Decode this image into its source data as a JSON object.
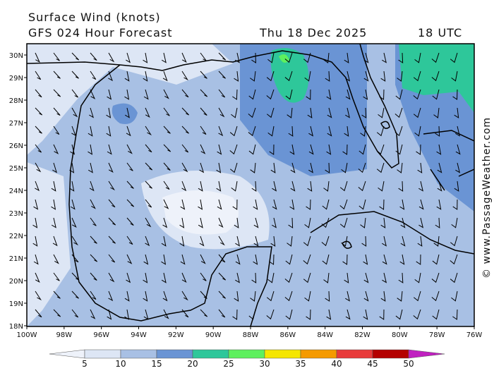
{
  "header": {
    "title": "Surface Wind (knots)",
    "subtitle": "GFS 024 Hour Forecast",
    "date": "Thu 18 Dec 2025",
    "time": "18 UTC"
  },
  "map": {
    "lat_labels": [
      "30N",
      "29N",
      "28N",
      "27N",
      "26N",
      "25N",
      "24N",
      "23N",
      "22N",
      "21N",
      "20N",
      "19N",
      "18N"
    ],
    "lon_labels": [
      "100W",
      "98W",
      "96W",
      "94W",
      "92W",
      "90W",
      "88W",
      "86W",
      "84W",
      "82W",
      "80W",
      "78W",
      "76W"
    ]
  },
  "colorbar": {
    "ticks": [
      5,
      10,
      15,
      20,
      25,
      30,
      35,
      40,
      45,
      50
    ],
    "colors": [
      "#eef2fa",
      "#dde6f5",
      "#a8c0e4",
      "#6a94d4",
      "#2ec79a",
      "#5ef05e",
      "#f5e600",
      "#f59a00",
      "#e83a3a",
      "#b40000",
      "#c020c0"
    ]
  },
  "credit": "© www.PassageWeather.com"
}
